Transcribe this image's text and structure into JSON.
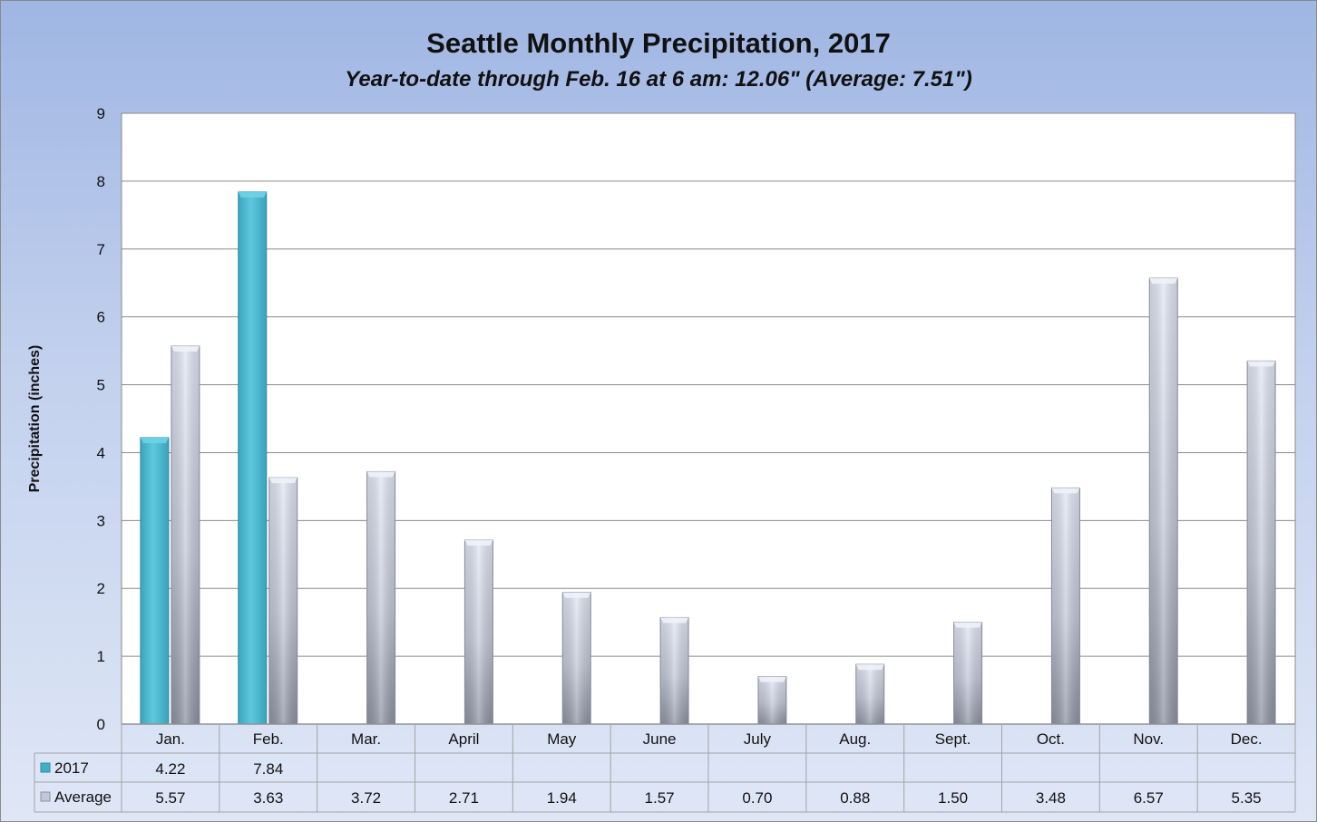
{
  "chart_data": {
    "type": "bar",
    "title": "Seattle Monthly Precipitation, 2017",
    "subtitle": "Year-to-date through Feb. 16 at 6 am: 12.06\" (Average: 7.51\")",
    "xlabel": "",
    "ylabel": "Precipitation (inches)",
    "ylim": [
      0,
      9
    ],
    "yticks": [
      "0",
      "1",
      "2",
      "3",
      "4",
      "5",
      "6",
      "7",
      "8",
      "9"
    ],
    "grid": true,
    "categories": [
      "Jan.",
      "Feb.",
      "Mar.",
      "April",
      "May",
      "June",
      "July",
      "Aug.",
      "Sept.",
      "Oct.",
      "Nov.",
      "Dec."
    ],
    "series": [
      {
        "name": "2017",
        "color": "#4db8cf",
        "values": [
          4.22,
          7.84,
          null,
          null,
          null,
          null,
          null,
          null,
          null,
          null,
          null,
          null
        ],
        "labels": [
          "4.22",
          "7.84",
          "",
          "",
          "",
          "",
          "",
          "",
          "",
          "",
          "",
          ""
        ]
      },
      {
        "name": "Average",
        "color": "#c3c8d6",
        "values": [
          5.57,
          3.63,
          3.72,
          2.71,
          1.94,
          1.57,
          0.7,
          0.88,
          1.5,
          3.48,
          6.57,
          5.35
        ],
        "labels": [
          "5.57",
          "3.63",
          "3.72",
          "2.71",
          "1.94",
          "1.57",
          "0.70",
          "0.88",
          "1.50",
          "3.48",
          "6.57",
          "5.35"
        ]
      }
    ],
    "legend_placement": "data-table-left"
  }
}
